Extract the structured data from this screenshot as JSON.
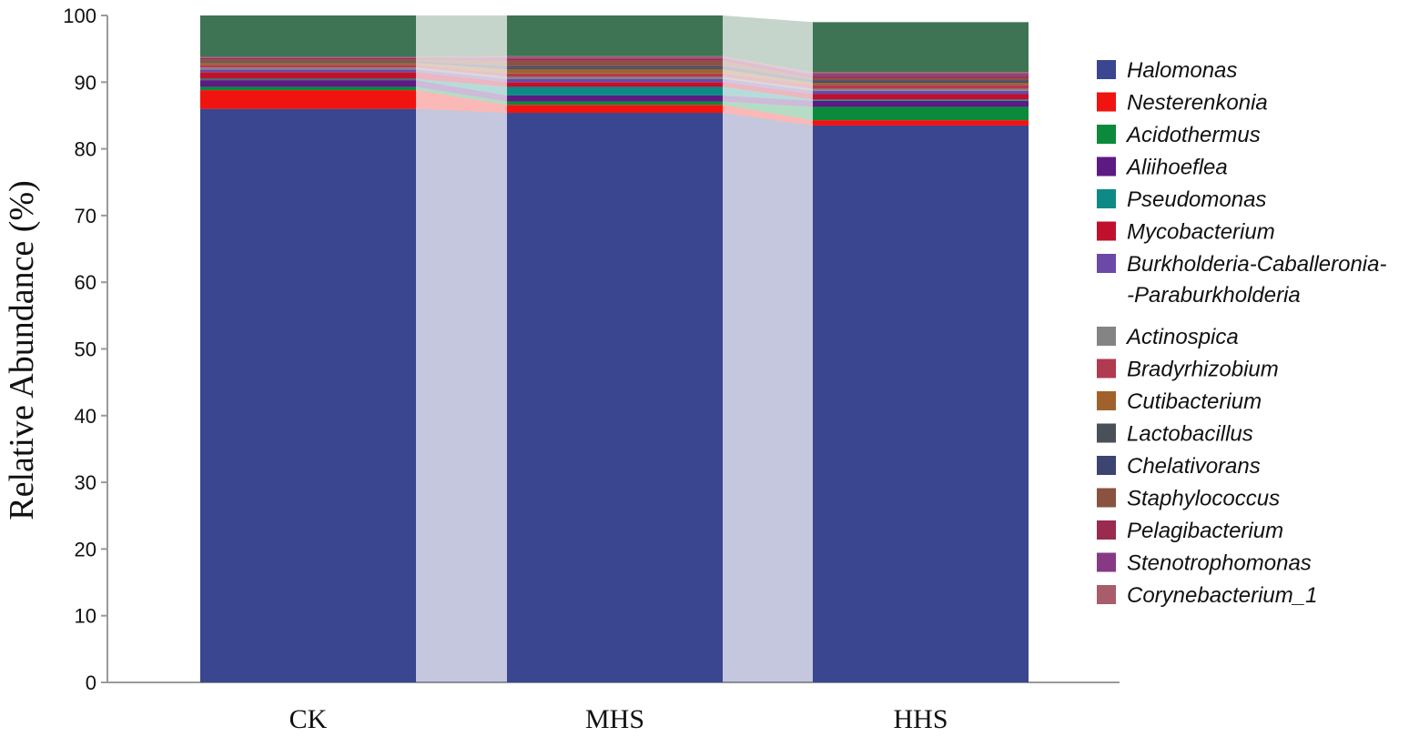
{
  "chart_data": {
    "type": "bar",
    "stacked": true,
    "title": "",
    "xlabel": "",
    "ylabel": "Relative Abundance (%)",
    "ylim": [
      0,
      100
    ],
    "yticks": [
      0,
      10,
      20,
      30,
      40,
      50,
      60,
      70,
      80,
      90,
      100
    ],
    "categories": [
      "CK",
      "MHS",
      "HHS"
    ],
    "legend_position": "right",
    "series": [
      {
        "name": "Halomonas",
        "color": "#3a468f",
        "values": [
          86.0,
          85.4,
          83.5
        ]
      },
      {
        "name": "Nesterenkonia",
        "color": "#f0130f",
        "values": [
          2.8,
          1.2,
          0.8
        ]
      },
      {
        "name": "Acidothermus",
        "color": "#0b8a3c",
        "values": [
          0.5,
          0.5,
          2.0
        ]
      },
      {
        "name": "Aliihoeflea",
        "color": "#5c1a82",
        "values": [
          1.0,
          0.9,
          0.9
        ]
      },
      {
        "name": "Pseudomonas",
        "color": "#0e8a86",
        "values": [
          0.2,
          1.3,
          0.2
        ]
      },
      {
        "name": "Mycobacterium",
        "color": "#c0102e",
        "values": [
          1.0,
          0.7,
          0.8
        ]
      },
      {
        "name": "Burkholderia-Caballeronia--Paraburkholderia",
        "color": "#6a4aa6",
        "values": [
          0.4,
          0.5,
          0.5
        ]
      },
      {
        "name": "Actinospica",
        "color": "#848484",
        "values": [
          0.3,
          0.3,
          0.3
        ]
      },
      {
        "name": "Bradyrhizobium",
        "color": "#b03a50",
        "values": [
          0.4,
          0.5,
          0.6
        ]
      },
      {
        "name": "Cutibacterium",
        "color": "#a0622a",
        "values": [
          0.3,
          0.6,
          0.3
        ]
      },
      {
        "name": "Lactobacillus",
        "color": "#4a5058",
        "values": [
          0.1,
          0.3,
          0.2
        ]
      },
      {
        "name": "Chelativorans",
        "color": "#3c4470",
        "values": [
          0.1,
          0.2,
          0.2
        ]
      },
      {
        "name": "Staphylococcus",
        "color": "#8a5240",
        "values": [
          0.3,
          0.8,
          0.3
        ]
      },
      {
        "name": "Pelagibacterium",
        "color": "#9a2a4e",
        "values": [
          0.2,
          0.3,
          0.3
        ]
      },
      {
        "name": "Stenotrophomonas",
        "color": "#863a84",
        "values": [
          0.1,
          0.2,
          0.3
        ]
      },
      {
        "name": "Corynebacterium_1",
        "color": "#a85c6c",
        "values": [
          0.1,
          0.2,
          0.3
        ]
      },
      {
        "name": "",
        "color": "#3e7454",
        "values": [
          6.2,
          6.1,
          7.5
        ]
      }
    ]
  }
}
